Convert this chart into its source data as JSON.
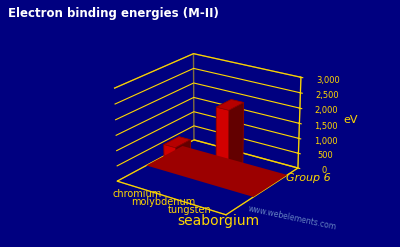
{
  "title": "Electron binding energies (M-II)",
  "elements": [
    "chromium",
    "molybdenum",
    "tungsten",
    "seaborgium"
  ],
  "values": [
    584,
    227,
    2281,
    18
  ],
  "ylabel": "eV",
  "group_label": "Group 6",
  "watermark": "www.webelements.com",
  "ymax": 3000,
  "yticks": [
    0,
    500,
    1000,
    1500,
    2000,
    2500,
    3000
  ],
  "bar_color": "#ee0000",
  "grid_color": "#ffd700",
  "bg_color": "#000080",
  "title_color": "#ffffff",
  "label_color": "#ffd700",
  "watermark_color": "#7799cc",
  "elev": 22,
  "azim": -55
}
